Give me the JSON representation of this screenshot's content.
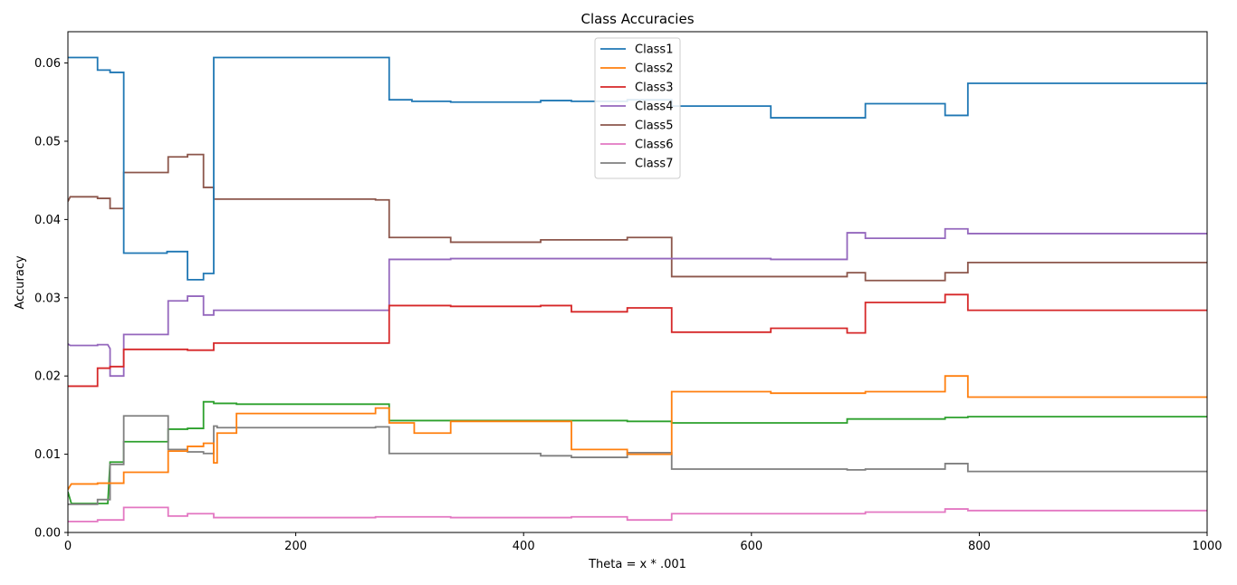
{
  "chart_data": {
    "type": "line",
    "title": "Class Accuracies",
    "xlabel": "Theta = x * .001",
    "ylabel": "Accuracy",
    "xlim": [
      0,
      1000
    ],
    "ylim": [
      0,
      0.064
    ],
    "x_ticks": [
      0,
      200,
      400,
      600,
      800,
      1000
    ],
    "x_tick_labels": [
      "0",
      "200",
      "400",
      "600",
      "800",
      "1000"
    ],
    "y_ticks": [
      0,
      0.01,
      0.02,
      0.03,
      0.04,
      0.05,
      0.06
    ],
    "y_tick_labels": [
      "0.00",
      "0.01",
      "0.02",
      "0.03",
      "0.04",
      "0.05",
      "0.06"
    ],
    "grid": false,
    "legend_position": "top-center",
    "series": [
      {
        "name": "Class1",
        "color": "#1f77b4",
        "points": [
          [
            0,
            0.0607
          ],
          [
            26,
            0.0607
          ],
          [
            26,
            0.0591
          ],
          [
            37,
            0.0591
          ],
          [
            37,
            0.0588
          ],
          [
            49,
            0.0588
          ],
          [
            49,
            0.0357
          ],
          [
            87,
            0.0357
          ],
          [
            87,
            0.0359
          ],
          [
            105,
            0.0359
          ],
          [
            105,
            0.0323
          ],
          [
            119,
            0.0323
          ],
          [
            119,
            0.0331
          ],
          [
            128,
            0.0331
          ],
          [
            128,
            0.0607
          ],
          [
            282,
            0.0607
          ],
          [
            282,
            0.0553
          ],
          [
            302,
            0.0553
          ],
          [
            302,
            0.0551
          ],
          [
            336,
            0.0551
          ],
          [
            336,
            0.055
          ],
          [
            415,
            0.055
          ],
          [
            415,
            0.0552
          ],
          [
            442,
            0.0552
          ],
          [
            442,
            0.0551
          ],
          [
            491,
            0.0551
          ],
          [
            491,
            0.0553
          ],
          [
            530,
            0.0553
          ],
          [
            530,
            0.0545
          ],
          [
            617,
            0.0545
          ],
          [
            617,
            0.053
          ],
          [
            700,
            0.053
          ],
          [
            700,
            0.0548
          ],
          [
            770,
            0.0548
          ],
          [
            770,
            0.0533
          ],
          [
            790,
            0.0533
          ],
          [
            790,
            0.0574
          ],
          [
            1000,
            0.0574
          ]
        ]
      },
      {
        "name": "Class2",
        "color": "#ff7f0e",
        "points": [
          [
            0,
            0.0055
          ],
          [
            3,
            0.0062
          ],
          [
            26,
            0.0062
          ],
          [
            26,
            0.0063
          ],
          [
            49,
            0.0063
          ],
          [
            49,
            0.0077
          ],
          [
            88,
            0.0077
          ],
          [
            88,
            0.0104
          ],
          [
            105,
            0.0104
          ],
          [
            105,
            0.011
          ],
          [
            119,
            0.011
          ],
          [
            119,
            0.0114
          ],
          [
            128,
            0.0114
          ],
          [
            128,
            0.0089
          ],
          [
            131,
            0.0089
          ],
          [
            131,
            0.0127
          ],
          [
            148,
            0.0127
          ],
          [
            148,
            0.0152
          ],
          [
            270,
            0.0152
          ],
          [
            270,
            0.0159
          ],
          [
            282,
            0.0159
          ],
          [
            282,
            0.014
          ],
          [
            304,
            0.014
          ],
          [
            304,
            0.0127
          ],
          [
            336,
            0.0127
          ],
          [
            336,
            0.0142
          ],
          [
            442,
            0.0142
          ],
          [
            442,
            0.0106
          ],
          [
            491,
            0.0106
          ],
          [
            491,
            0.01
          ],
          [
            530,
            0.01
          ],
          [
            530,
            0.018
          ],
          [
            617,
            0.018
          ],
          [
            617,
            0.0178
          ],
          [
            700,
            0.0178
          ],
          [
            700,
            0.018
          ],
          [
            770,
            0.018
          ],
          [
            770,
            0.02
          ],
          [
            790,
            0.02
          ],
          [
            790,
            0.0173
          ],
          [
            1000,
            0.0173
          ]
        ]
      },
      {
        "name": "Class3",
        "color": "#d62728",
        "points": [
          [
            0,
            0.0187
          ],
          [
            26,
            0.0187
          ],
          [
            26,
            0.021
          ],
          [
            37,
            0.021
          ],
          [
            37,
            0.0212
          ],
          [
            49,
            0.0212
          ],
          [
            49,
            0.0234
          ],
          [
            105,
            0.0234
          ],
          [
            105,
            0.0233
          ],
          [
            128,
            0.0233
          ],
          [
            128,
            0.0242
          ],
          [
            282,
            0.0242
          ],
          [
            282,
            0.029
          ],
          [
            336,
            0.029
          ],
          [
            336,
            0.0289
          ],
          [
            415,
            0.0289
          ],
          [
            415,
            0.029
          ],
          [
            442,
            0.029
          ],
          [
            442,
            0.0282
          ],
          [
            491,
            0.0282
          ],
          [
            491,
            0.0287
          ],
          [
            530,
            0.0287
          ],
          [
            530,
            0.0256
          ],
          [
            617,
            0.0256
          ],
          [
            617,
            0.0261
          ],
          [
            684,
            0.0261
          ],
          [
            684,
            0.0255
          ],
          [
            700,
            0.0255
          ],
          [
            700,
            0.0294
          ],
          [
            770,
            0.0294
          ],
          [
            770,
            0.0304
          ],
          [
            790,
            0.0304
          ],
          [
            790,
            0.0284
          ],
          [
            1000,
            0.0284
          ]
        ]
      },
      {
        "name": "Class4",
        "color": "#9467bd",
        "points": [
          [
            0,
            0.0241
          ],
          [
            2,
            0.0239
          ],
          [
            26,
            0.0239
          ],
          [
            26,
            0.024
          ],
          [
            35,
            0.024
          ],
          [
            37,
            0.0235
          ],
          [
            37,
            0.02
          ],
          [
            49,
            0.02
          ],
          [
            49,
            0.0253
          ],
          [
            88,
            0.0253
          ],
          [
            88,
            0.0296
          ],
          [
            105,
            0.0296
          ],
          [
            105,
            0.0302
          ],
          [
            119,
            0.0302
          ],
          [
            119,
            0.0278
          ],
          [
            128,
            0.0278
          ],
          [
            128,
            0.0284
          ],
          [
            282,
            0.0284
          ],
          [
            282,
            0.0349
          ],
          [
            336,
            0.0349
          ],
          [
            336,
            0.035
          ],
          [
            617,
            0.035
          ],
          [
            617,
            0.0349
          ],
          [
            684,
            0.0349
          ],
          [
            684,
            0.0383
          ],
          [
            700,
            0.0383
          ],
          [
            700,
            0.0376
          ],
          [
            770,
            0.0376
          ],
          [
            770,
            0.0388
          ],
          [
            790,
            0.0388
          ],
          [
            790,
            0.0382
          ],
          [
            1000,
            0.0382
          ]
        ]
      },
      {
        "name": "Class5",
        "color": "#8c564b",
        "points": [
          [
            0,
            0.0423
          ],
          [
            2,
            0.0429
          ],
          [
            26,
            0.0429
          ],
          [
            26,
            0.0427
          ],
          [
            37,
            0.0427
          ],
          [
            37,
            0.0414
          ],
          [
            49,
            0.0414
          ],
          [
            49,
            0.046
          ],
          [
            88,
            0.046
          ],
          [
            88,
            0.048
          ],
          [
            105,
            0.048
          ],
          [
            105,
            0.0483
          ],
          [
            119,
            0.0483
          ],
          [
            119,
            0.0441
          ],
          [
            128,
            0.0441
          ],
          [
            128,
            0.0426
          ],
          [
            270,
            0.0426
          ],
          [
            270,
            0.0425
          ],
          [
            282,
            0.0425
          ],
          [
            282,
            0.0377
          ],
          [
            336,
            0.0377
          ],
          [
            336,
            0.0371
          ],
          [
            415,
            0.0371
          ],
          [
            415,
            0.0374
          ],
          [
            491,
            0.0374
          ],
          [
            491,
            0.0377
          ],
          [
            530,
            0.0377
          ],
          [
            530,
            0.0327
          ],
          [
            684,
            0.0327
          ],
          [
            684,
            0.0332
          ],
          [
            700,
            0.0332
          ],
          [
            700,
            0.0322
          ],
          [
            770,
            0.0322
          ],
          [
            770,
            0.0332
          ],
          [
            790,
            0.0332
          ],
          [
            790,
            0.0345
          ],
          [
            1000,
            0.0345
          ]
        ]
      },
      {
        "name": "Class6",
        "color": "#e377c2",
        "points": [
          [
            0,
            0.0014
          ],
          [
            26,
            0.0014
          ],
          [
            26,
            0.0016
          ],
          [
            49,
            0.0016
          ],
          [
            49,
            0.0032
          ],
          [
            88,
            0.0032
          ],
          [
            88,
            0.0021
          ],
          [
            105,
            0.0021
          ],
          [
            105,
            0.0024
          ],
          [
            128,
            0.0024
          ],
          [
            128,
            0.0019
          ],
          [
            270,
            0.0019
          ],
          [
            270,
            0.002
          ],
          [
            336,
            0.002
          ],
          [
            336,
            0.0019
          ],
          [
            442,
            0.0019
          ],
          [
            442,
            0.002
          ],
          [
            491,
            0.002
          ],
          [
            491,
            0.0016
          ],
          [
            530,
            0.0016
          ],
          [
            530,
            0.0024
          ],
          [
            700,
            0.0024
          ],
          [
            700,
            0.0026
          ],
          [
            770,
            0.0026
          ],
          [
            770,
            0.003
          ],
          [
            790,
            0.003
          ],
          [
            790,
            0.0028
          ],
          [
            1000,
            0.0028
          ]
        ]
      },
      {
        "name": "Class7",
        "color": "#7f7f7f",
        "points": [
          [
            0,
            0.0036
          ],
          [
            26,
            0.0036
          ],
          [
            26,
            0.0042
          ],
          [
            37,
            0.0042
          ],
          [
            37,
            0.0087
          ],
          [
            49,
            0.0087
          ],
          [
            49,
            0.0149
          ],
          [
            88,
            0.0149
          ],
          [
            88,
            0.0106
          ],
          [
            105,
            0.0106
          ],
          [
            105,
            0.0103
          ],
          [
            119,
            0.0103
          ],
          [
            119,
            0.0101
          ],
          [
            128,
            0.0101
          ],
          [
            128,
            0.0136
          ],
          [
            131,
            0.0136
          ],
          [
            131,
            0.0134
          ],
          [
            270,
            0.0134
          ],
          [
            270,
            0.0135
          ],
          [
            282,
            0.0135
          ],
          [
            282,
            0.0101
          ],
          [
            415,
            0.0101
          ],
          [
            415,
            0.0098
          ],
          [
            442,
            0.0098
          ],
          [
            442,
            0.0096
          ],
          [
            491,
            0.0096
          ],
          [
            491,
            0.0102
          ],
          [
            530,
            0.0102
          ],
          [
            530,
            0.0081
          ],
          [
            684,
            0.0081
          ],
          [
            684,
            0.008
          ],
          [
            700,
            0.008
          ],
          [
            700,
            0.0081
          ],
          [
            770,
            0.0081
          ],
          [
            770,
            0.0088
          ],
          [
            790,
            0.0088
          ],
          [
            790,
            0.0078
          ],
          [
            1000,
            0.0078
          ]
        ]
      },
      {
        "name": "",
        "color": "#2ca02c",
        "points": [
          [
            0,
            0.0052
          ],
          [
            3,
            0.0037
          ],
          [
            35,
            0.0037
          ],
          [
            37,
            0.009
          ],
          [
            49,
            0.009
          ],
          [
            49,
            0.0116
          ],
          [
            88,
            0.0116
          ],
          [
            88,
            0.0132
          ],
          [
            105,
            0.0132
          ],
          [
            105,
            0.0133
          ],
          [
            119,
            0.0133
          ],
          [
            119,
            0.0167
          ],
          [
            128,
            0.0167
          ],
          [
            128,
            0.0165
          ],
          [
            148,
            0.0165
          ],
          [
            148,
            0.0164
          ],
          [
            282,
            0.0164
          ],
          [
            282,
            0.0143
          ],
          [
            491,
            0.0143
          ],
          [
            491,
            0.0142
          ],
          [
            530,
            0.0142
          ],
          [
            530,
            0.014
          ],
          [
            684,
            0.014
          ],
          [
            684,
            0.0145
          ],
          [
            770,
            0.0145
          ],
          [
            770,
            0.0147
          ],
          [
            790,
            0.0147
          ],
          [
            790,
            0.0148
          ],
          [
            1000,
            0.0148
          ]
        ]
      }
    ]
  }
}
